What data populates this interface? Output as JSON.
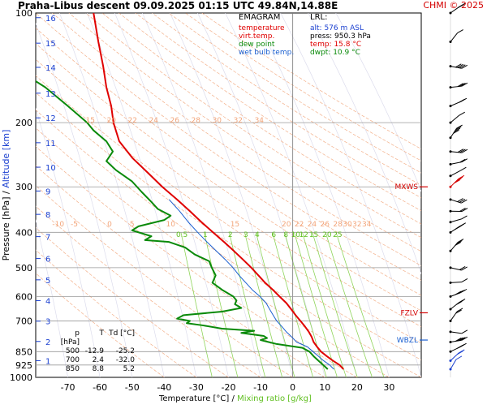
{
  "header": {
    "title": "Praha-Libus   descent   09.09.2025 01:15 UTC  49.84N,14.88E",
    "copyright": "CHMI © 2025"
  },
  "legend": {
    "title": "EMAGRAM",
    "items": [
      {
        "label": "temperature",
        "color": "#e00000"
      },
      {
        "label": "virt.temp.",
        "color": "#e00000"
      },
      {
        "label": "dew point",
        "color": "#0a8a0a"
      },
      {
        "label": "wet bulb temp.",
        "color": "#1a5fd0"
      }
    ]
  },
  "lrl": {
    "title": "LRL:",
    "alt": "alt: 576 m ASL",
    "press": "press: 950.3 hPa",
    "temp": "temp: 15.8 °C",
    "dwpt": "dwpt: 10.9 °C"
  },
  "level_table": {
    "headers": [
      "p [hPa]",
      "T",
      "Td [°C]"
    ],
    "rows": [
      [
        "500",
        "-12.9",
        "-25.2"
      ],
      [
        "700",
        "2.4",
        "-32.0"
      ],
      [
        "850",
        "8.8",
        "5.2"
      ]
    ]
  },
  "axes": {
    "ylabel_pressure": "Pressure [hPa]",
    "ylabel_sep": "/",
    "ylabel_altitude": "Altitude [km]",
    "xlabel_temp": "Temperature [°C]",
    "xlabel_sep": "/",
    "xlabel_mix": "Mixing ratio [g/kg]"
  },
  "chart_data": {
    "type": "line",
    "xlabel": "Temperature [°C]",
    "ylabel": "Pressure [hPa]",
    "x_range": [
      -80,
      40
    ],
    "y_range_hpa": [
      1000,
      100
    ],
    "y_scale": "log",
    "x_ticks": [
      -70,
      -60,
      -50,
      -40,
      -30,
      -20,
      -10,
      0,
      10,
      20,
      30
    ],
    "pressure_ticks": [
      100,
      200,
      300,
      400,
      500,
      600,
      700,
      850,
      925,
      1000
    ],
    "gridlines_hpa": [
      200,
      300,
      400,
      500,
      600,
      700,
      850,
      925
    ],
    "altitude_ticks_km": [
      {
        "km": 1,
        "p": 900
      },
      {
        "km": 2,
        "p": 797
      },
      {
        "km": 3,
        "p": 701
      },
      {
        "km": 4,
        "p": 616
      },
      {
        "km": 5,
        "p": 540
      },
      {
        "km": 6,
        "p": 472
      },
      {
        "km": 7,
        "p": 411
      },
      {
        "km": 8,
        "p": 357
      },
      {
        "km": 9,
        "p": 308
      },
      {
        "km": 10,
        "p": 265
      },
      {
        "km": 11,
        "p": 227
      },
      {
        "km": 12,
        "p": 194
      },
      {
        "km": 13,
        "p": 166
      },
      {
        "km": 14,
        "p": 141
      },
      {
        "km": 15,
        "p": 121
      },
      {
        "km": 16,
        "p": 103
      }
    ],
    "mixing_ratio_labels": [
      "2",
      "3",
      "4",
      "6",
      "8",
      "10",
      "12",
      "15",
      "20",
      "25"
    ],
    "mixing_ratio_labels_upper": [
      "0.5",
      "1"
    ],
    "dry_adiabat_labels_upper": [
      "15",
      "20",
      "22",
      "24",
      "26",
      "28",
      "30",
      "32",
      "34"
    ],
    "dry_adiabat_labels_lower": [
      "-10",
      "-5",
      "0",
      "5",
      "10",
      "15",
      "20",
      "22",
      "24",
      "26",
      "28",
      "30",
      "32",
      "34"
    ],
    "level_markers": [
      {
        "label": "MXWS",
        "p": 300,
        "color": "#d40000"
      },
      {
        "label": "FZLV",
        "p": 665,
        "color": "#d40000"
      },
      {
        "label": "WBZL",
        "p": 790,
        "color": "#1a5fd0"
      }
    ],
    "series": [
      {
        "name": "temperature",
        "color": "#e00000",
        "points": [
          [
            950,
            15.8
          ],
          [
            925,
            14.6
          ],
          [
            900,
            12.5
          ],
          [
            875,
            10.6
          ],
          [
            850,
            8.8
          ],
          [
            825,
            7.6
          ],
          [
            800,
            6.5
          ],
          [
            775,
            5.9
          ],
          [
            750,
            5.0
          ],
          [
            725,
            3.8
          ],
          [
            700,
            2.4
          ],
          [
            675,
            0.9
          ],
          [
            650,
            -0.5
          ],
          [
            625,
            -2.0
          ],
          [
            600,
            -4.1
          ],
          [
            575,
            -6.2
          ],
          [
            550,
            -8.6
          ],
          [
            525,
            -10.7
          ],
          [
            500,
            -12.9
          ],
          [
            475,
            -15.5
          ],
          [
            450,
            -18.3
          ],
          [
            425,
            -21.4
          ],
          [
            400,
            -24.8
          ],
          [
            375,
            -28.4
          ],
          [
            350,
            -32.0
          ],
          [
            325,
            -36.0
          ],
          [
            300,
            -40.6
          ],
          [
            275,
            -45.0
          ],
          [
            250,
            -49.9
          ],
          [
            225,
            -54.0
          ],
          [
            200,
            -55.8
          ],
          [
            180,
            -56.5
          ],
          [
            160,
            -58.0
          ],
          [
            140,
            -59.0
          ],
          [
            120,
            -60.5
          ],
          [
            100,
            -62.0
          ]
        ]
      },
      {
        "name": "dew point",
        "color": "#0a8a0a",
        "points": [
          [
            950,
            10.9
          ],
          [
            925,
            9.5
          ],
          [
            900,
            8.0
          ],
          [
            875,
            6.5
          ],
          [
            850,
            5.2
          ],
          [
            830,
            3.0
          ],
          [
            810,
            -5.0
          ],
          [
            800,
            -7.5
          ],
          [
            790,
            -10.0
          ],
          [
            780,
            -8.0
          ],
          [
            770,
            -9.0
          ],
          [
            755,
            -16.0
          ],
          [
            745,
            -12.0
          ],
          [
            735,
            -22.0
          ],
          [
            720,
            -28.0
          ],
          [
            710,
            -33.0
          ],
          [
            700,
            -32.0
          ],
          [
            690,
            -36.0
          ],
          [
            675,
            -34.0
          ],
          [
            660,
            -22.0
          ],
          [
            645,
            -16.0
          ],
          [
            630,
            -18.0
          ],
          [
            615,
            -17.5
          ],
          [
            600,
            -18.5
          ],
          [
            575,
            -22.0
          ],
          [
            550,
            -25.0
          ],
          [
            525,
            -24.0
          ],
          [
            500,
            -25.2
          ],
          [
            480,
            -26.0
          ],
          [
            460,
            -30.5
          ],
          [
            440,
            -33.5
          ],
          [
            425,
            -38.5
          ],
          [
            420,
            -46.0
          ],
          [
            410,
            -44.0
          ],
          [
            395,
            -50.0
          ],
          [
            385,
            -48.0
          ],
          [
            370,
            -40.0
          ],
          [
            360,
            -38.0
          ],
          [
            345,
            -42.0
          ],
          [
            330,
            -44.0
          ],
          [
            310,
            -47.0
          ],
          [
            290,
            -50.0
          ],
          [
            270,
            -55.0
          ],
          [
            255,
            -58.0
          ],
          [
            240,
            -56.0
          ],
          [
            225,
            -58.0
          ],
          [
            210,
            -62.0
          ],
          [
            200,
            -64.0
          ],
          [
            180,
            -70.0
          ],
          [
            160,
            -77.0
          ],
          [
            150,
            -82.0
          ]
        ]
      },
      {
        "name": "wet bulb temp.",
        "color": "#1a5fd0",
        "points": [
          [
            950,
            12.8
          ],
          [
            925,
            11.5
          ],
          [
            900,
            9.6
          ],
          [
            875,
            8.0
          ],
          [
            850,
            6.3
          ],
          [
            825,
            4.6
          ],
          [
            800,
            1.2
          ],
          [
            775,
            -0.3
          ],
          [
            750,
            -2.0
          ],
          [
            725,
            -3.4
          ],
          [
            700,
            -5.0
          ],
          [
            675,
            -6.1
          ],
          [
            650,
            -7.2
          ],
          [
            625,
            -8.3
          ],
          [
            600,
            -10.2
          ],
          [
            575,
            -12.6
          ],
          [
            550,
            -14.6
          ],
          [
            525,
            -16.7
          ],
          [
            500,
            -18.6
          ],
          [
            475,
            -21.0
          ],
          [
            450,
            -23.8
          ],
          [
            425,
            -26.7
          ],
          [
            400,
            -29.6
          ],
          [
            375,
            -32.5
          ],
          [
            350,
            -35.2
          ],
          [
            325,
            -38.5
          ]
        ]
      }
    ]
  }
}
